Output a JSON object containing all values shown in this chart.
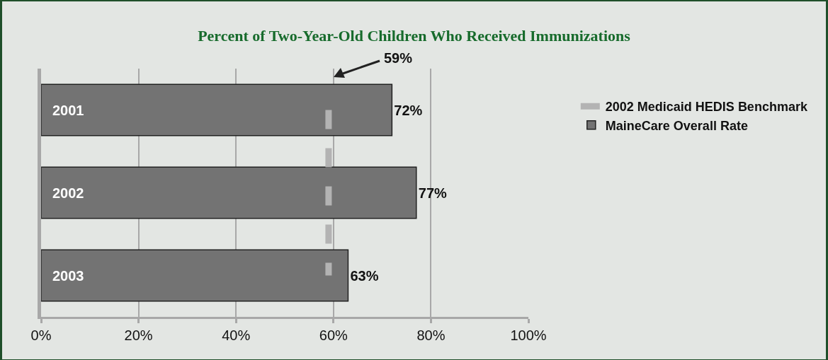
{
  "chart_data": {
    "type": "bar",
    "orientation": "horizontal",
    "title": "Percent of Two-Year-Old Children Who Received Immunizations",
    "categories": [
      "2001",
      "2002",
      "2003"
    ],
    "series": [
      {
        "name": "2002 Medicaid HEDIS Benchmark",
        "type": "line",
        "color": "#b3b3b3",
        "line_style": "dashed",
        "values": [
          59,
          59,
          59
        ]
      },
      {
        "name": "MaineCare Overall Rate",
        "color": "#737373",
        "values": [
          72,
          77,
          63
        ],
        "value_labels": [
          "72%",
          "77%",
          "63%"
        ]
      }
    ],
    "xlim": [
      0,
      100
    ],
    "xticks": [
      {
        "value": 0,
        "label": "0%"
      },
      {
        "value": 20,
        "label": "20%"
      },
      {
        "value": 40,
        "label": "40%"
      },
      {
        "value": 60,
        "label": "60%"
      },
      {
        "value": 80,
        "label": "80%"
      },
      {
        "value": 100,
        "label": "100%"
      }
    ],
    "annotations": [
      "59%"
    ],
    "grid": "x",
    "legend": "right"
  }
}
